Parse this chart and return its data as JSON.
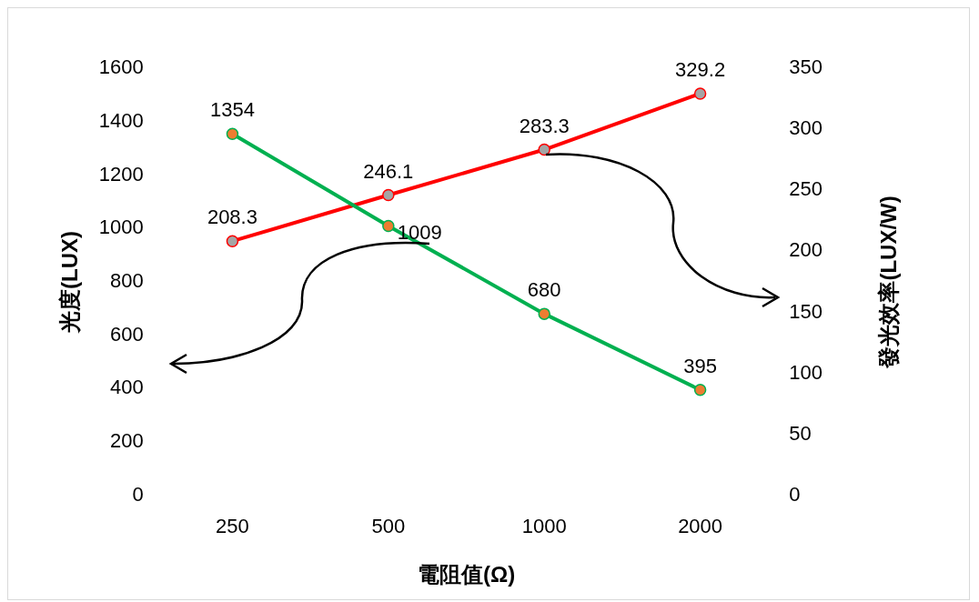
{
  "chart_data": {
    "type": "line",
    "xlabel": "電阻值(Ω)",
    "ylabel": "光度(LUX)",
    "y2label": "發光效率(LUX/W)",
    "categories": [
      "250",
      "500",
      "1000",
      "2000"
    ],
    "series": [
      {
        "name": null,
        "color": "#00b050",
        "colors": [
          "#ed7d31",
          "#ed7d31",
          "#ed7d31",
          "#ed7d31"
        ],
        "values": [
          1354,
          1009,
          680,
          395
        ]
      },
      {
        "name": null,
        "color": "#ff0000",
        "colors": [
          "#a5a5a5",
          "#a5a5a5",
          "#a5a5a5",
          "#a5a5a5"
        ],
        "values": [
          208.3,
          246.1,
          283.3,
          329.2
        ],
        "axis": "y2"
      }
    ],
    "ylim": [
      0,
      1600
    ],
    "yticks": [
      0,
      200,
      400,
      600,
      800,
      1000,
      1200,
      1400,
      1600
    ],
    "y2lim": [
      0,
      350
    ],
    "y2ticks": [
      0,
      50,
      100,
      150,
      200,
      250,
      300,
      350
    ],
    "data_labels": true,
    "grid": false,
    "legend": false,
    "marker": "circle",
    "line_style": "solid"
  }
}
